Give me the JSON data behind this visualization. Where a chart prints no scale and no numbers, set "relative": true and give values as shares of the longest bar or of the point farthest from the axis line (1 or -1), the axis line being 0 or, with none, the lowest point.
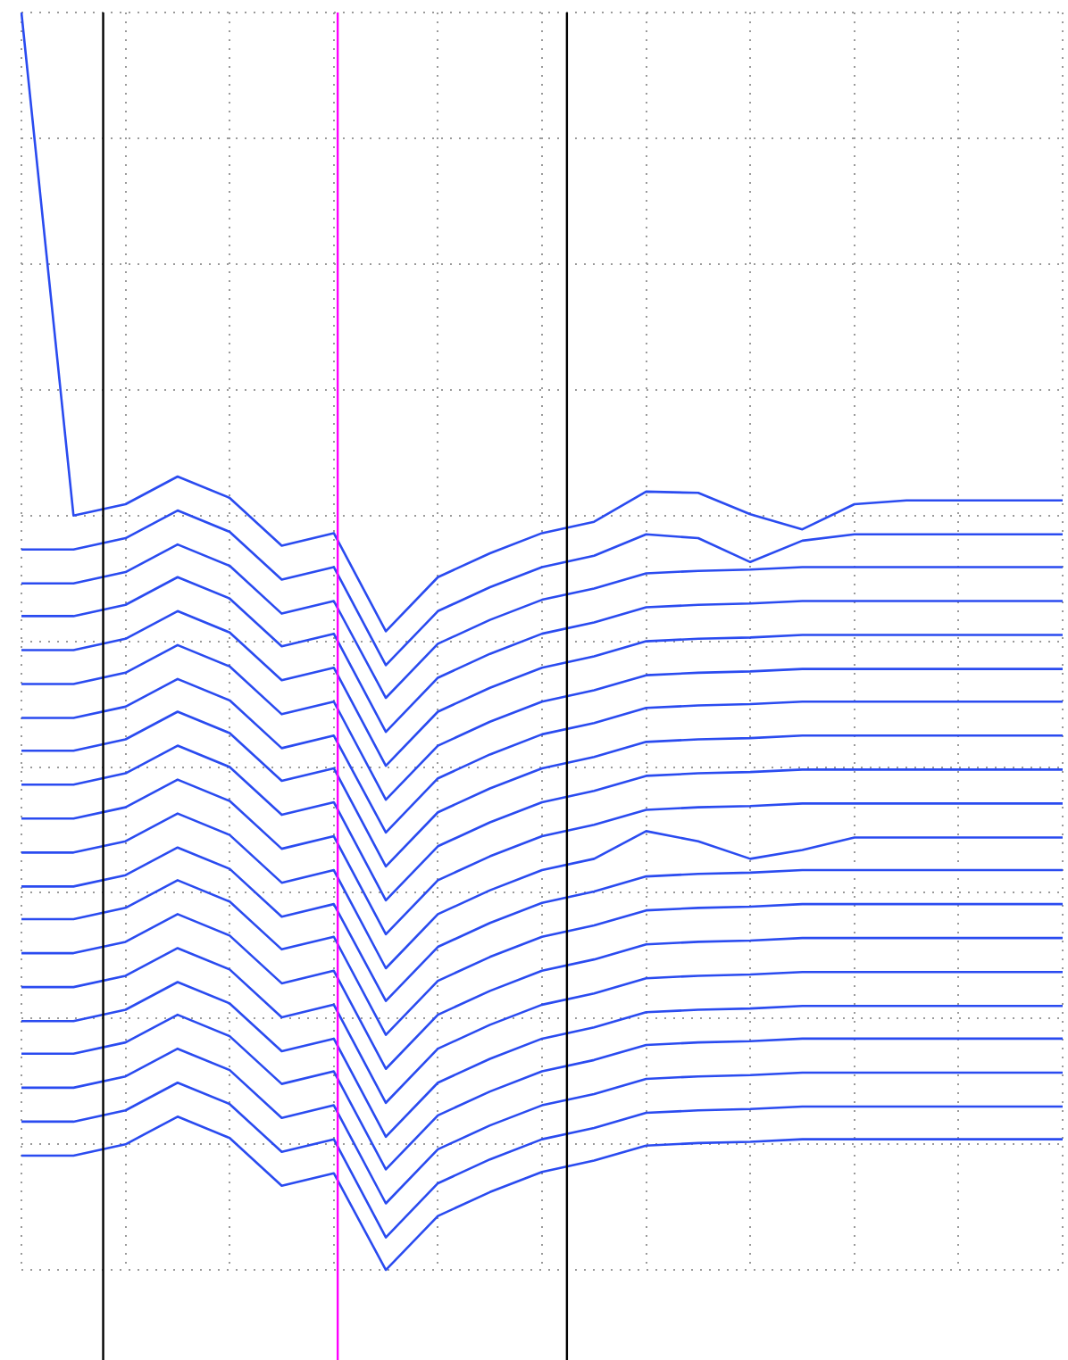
{
  "chart_data": {
    "type": "line",
    "relative": true,
    "grid": true,
    "legend": false,
    "marker": "none",
    "line_style": "solid",
    "categories": [
      null,
      null,
      null,
      null,
      null,
      null,
      null,
      null,
      null,
      null,
      null,
      null,
      null,
      null,
      null,
      null,
      null,
      null,
      null,
      null,
      null
    ],
    "series": [
      {
        "color": "#2a4bf0",
        "values": [
          1.0,
          0.6,
          0.609,
          0.631,
          0.614,
          0.576,
          0.586,
          0.508,
          0.551,
          0.57,
          0.586,
          0.595,
          0.619,
          0.618,
          0.601,
          0.589,
          0.609,
          0.612,
          0.612,
          0.612,
          0.612
        ]
      },
      {
        "color": "#2a4bf0",
        "values": [
          0.573,
          0.573,
          0.582,
          0.604,
          0.587,
          0.549,
          0.559,
          0.481,
          0.524,
          0.543,
          0.559,
          0.568,
          0.585,
          0.582,
          0.563,
          0.58,
          0.585,
          0.585,
          0.585,
          0.585,
          0.585
        ]
      },
      {
        "color": "#2a4bf0",
        "values": [
          0.546,
          0.546,
          0.555,
          0.577,
          0.56,
          0.522,
          0.532,
          0.455,
          0.498,
          0.517,
          0.533,
          0.542,
          0.554,
          0.556,
          0.557,
          0.559,
          0.559,
          0.559,
          0.559,
          0.559,
          0.559
        ]
      },
      {
        "color": "#2a4bf0",
        "values": [
          0.52,
          0.52,
          0.529,
          0.551,
          0.534,
          0.496,
          0.506,
          0.428,
          0.471,
          0.49,
          0.506,
          0.515,
          0.527,
          0.529,
          0.53,
          0.532,
          0.532,
          0.532,
          0.532,
          0.532,
          0.532
        ]
      },
      {
        "color": "#2a4bf0",
        "values": [
          0.493,
          0.493,
          0.502,
          0.524,
          0.507,
          0.469,
          0.479,
          0.401,
          0.444,
          0.463,
          0.479,
          0.488,
          0.5,
          0.502,
          0.503,
          0.505,
          0.505,
          0.505,
          0.505,
          0.505,
          0.505
        ]
      },
      {
        "color": "#2a4bf0",
        "values": [
          0.466,
          0.466,
          0.475,
          0.497,
          0.48,
          0.442,
          0.452,
          0.374,
          0.417,
          0.436,
          0.452,
          0.461,
          0.473,
          0.475,
          0.476,
          0.478,
          0.478,
          0.478,
          0.478,
          0.478,
          0.478
        ]
      },
      {
        "color": "#2a4bf0",
        "values": [
          0.439,
          0.439,
          0.448,
          0.47,
          0.453,
          0.415,
          0.425,
          0.348,
          0.391,
          0.41,
          0.426,
          0.435,
          0.447,
          0.449,
          0.45,
          0.452,
          0.452,
          0.452,
          0.452,
          0.452,
          0.452
        ]
      },
      {
        "color": "#2a4bf0",
        "values": [
          0.413,
          0.413,
          0.422,
          0.444,
          0.427,
          0.389,
          0.399,
          0.321,
          0.364,
          0.383,
          0.399,
          0.408,
          0.42,
          0.422,
          0.423,
          0.425,
          0.425,
          0.425,
          0.425,
          0.425,
          0.425
        ]
      },
      {
        "color": "#2a4bf0",
        "values": [
          0.386,
          0.386,
          0.395,
          0.417,
          0.4,
          0.362,
          0.372,
          0.294,
          0.337,
          0.356,
          0.372,
          0.381,
          0.393,
          0.395,
          0.396,
          0.398,
          0.398,
          0.398,
          0.398,
          0.398,
          0.398
        ]
      },
      {
        "color": "#2a4bf0",
        "values": [
          0.359,
          0.359,
          0.368,
          0.39,
          0.373,
          0.335,
          0.345,
          0.267,
          0.31,
          0.329,
          0.345,
          0.354,
          0.366,
          0.368,
          0.369,
          0.371,
          0.371,
          0.371,
          0.371,
          0.371,
          0.371
        ]
      },
      {
        "color": "#2a4bf0",
        "values": [
          0.332,
          0.332,
          0.341,
          0.363,
          0.346,
          0.308,
          0.318,
          0.24,
          0.283,
          0.302,
          0.318,
          0.327,
          0.349,
          0.341,
          0.327,
          0.334,
          0.344,
          0.344,
          0.344,
          0.344,
          0.344
        ]
      },
      {
        "color": "#2a4bf0",
        "values": [
          0.305,
          0.305,
          0.314,
          0.336,
          0.319,
          0.281,
          0.291,
          0.214,
          0.257,
          0.276,
          0.292,
          0.301,
          0.313,
          0.315,
          0.316,
          0.318,
          0.318,
          0.318,
          0.318,
          0.318,
          0.318
        ]
      },
      {
        "color": "#2a4bf0",
        "values": [
          0.279,
          0.279,
          0.288,
          0.31,
          0.293,
          0.255,
          0.265,
          0.187,
          0.23,
          0.249,
          0.265,
          0.274,
          0.286,
          0.288,
          0.289,
          0.291,
          0.291,
          0.291,
          0.291,
          0.291,
          0.291
        ]
      },
      {
        "color": "#2a4bf0",
        "values": [
          0.252,
          0.252,
          0.261,
          0.283,
          0.266,
          0.228,
          0.238,
          0.16,
          0.203,
          0.222,
          0.238,
          0.247,
          0.259,
          0.261,
          0.262,
          0.264,
          0.264,
          0.264,
          0.264,
          0.264,
          0.264
        ]
      },
      {
        "color": "#2a4bf0",
        "values": [
          0.225,
          0.225,
          0.234,
          0.256,
          0.239,
          0.201,
          0.211,
          0.133,
          0.176,
          0.195,
          0.211,
          0.22,
          0.232,
          0.234,
          0.235,
          0.237,
          0.237,
          0.237,
          0.237,
          0.237,
          0.237
        ]
      },
      {
        "color": "#2a4bf0",
        "values": [
          0.198,
          0.198,
          0.207,
          0.229,
          0.212,
          0.174,
          0.184,
          0.106,
          0.149,
          0.168,
          0.184,
          0.193,
          0.205,
          0.207,
          0.208,
          0.21,
          0.21,
          0.21,
          0.21,
          0.21,
          0.21
        ]
      },
      {
        "color": "#2a4bf0",
        "values": [
          0.172,
          0.172,
          0.181,
          0.203,
          0.186,
          0.148,
          0.158,
          0.08,
          0.123,
          0.142,
          0.158,
          0.167,
          0.179,
          0.181,
          0.182,
          0.184,
          0.184,
          0.184,
          0.184,
          0.184,
          0.184
        ]
      },
      {
        "color": "#2a4bf0",
        "values": [
          0.145,
          0.145,
          0.154,
          0.176,
          0.159,
          0.121,
          0.131,
          0.053,
          0.096,
          0.115,
          0.131,
          0.14,
          0.152,
          0.154,
          0.155,
          0.157,
          0.157,
          0.157,
          0.157,
          0.157,
          0.157
        ]
      },
      {
        "color": "#2a4bf0",
        "values": [
          0.118,
          0.118,
          0.127,
          0.149,
          0.132,
          0.094,
          0.104,
          0.026,
          0.069,
          0.088,
          0.104,
          0.113,
          0.125,
          0.127,
          0.128,
          0.13,
          0.13,
          0.13,
          0.13,
          0.13,
          0.13
        ]
      },
      {
        "color": "#2a4bf0",
        "values": [
          0.091,
          0.091,
          0.1,
          0.122,
          0.105,
          0.067,
          0.077,
          0.0,
          0.043,
          0.062,
          0.078,
          0.087,
          0.099,
          0.101,
          0.102,
          0.104,
          0.104,
          0.104,
          0.104,
          0.104,
          0.104
        ]
      }
    ]
  }
}
